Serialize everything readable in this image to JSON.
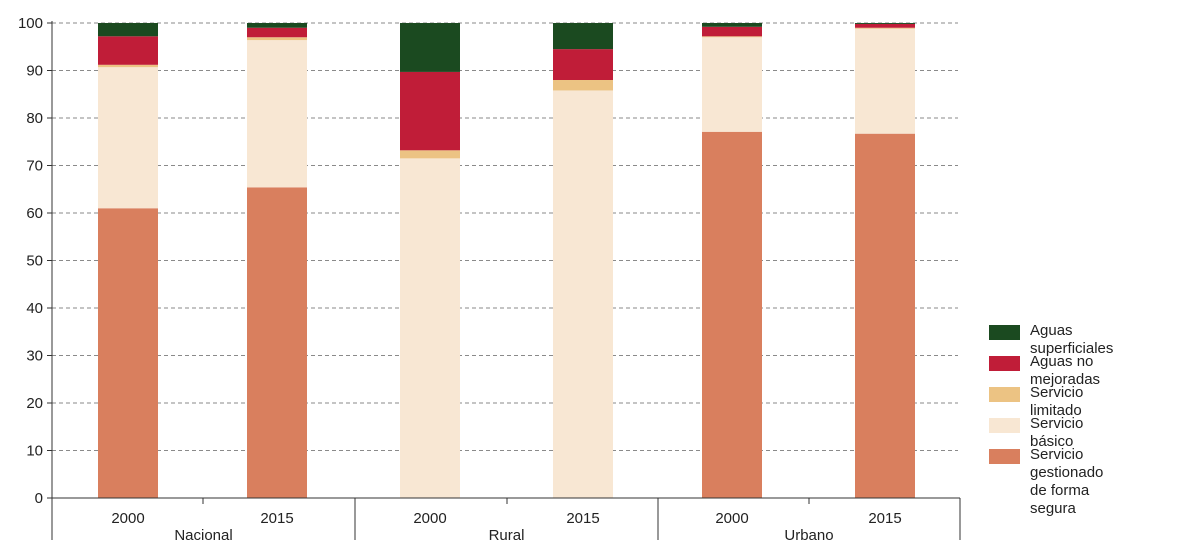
{
  "chart_data": {
    "type": "bar",
    "stacked": true,
    "groups": [
      {
        "label": "Nacional",
        "years": [
          "2000",
          "2015"
        ]
      },
      {
        "label": "Rural",
        "years": [
          "2000",
          "2015"
        ]
      },
      {
        "label": "Urbano",
        "years": [
          "2000",
          "2015"
        ]
      }
    ],
    "categories": [
      "Nacional 2000",
      "Nacional 2015",
      "Rural 2000",
      "Rural 2015",
      "Urbano 2000",
      "Urbano 2015"
    ],
    "series": [
      {
        "name": "Servicio gestionado\nde forma segura",
        "color": "#d97f5e",
        "values": [
          61,
          65.4,
          0,
          0,
          77.1,
          76.7
        ]
      },
      {
        "name": "Servicio básico",
        "color": "#f8e7d3",
        "values": [
          29.7,
          31,
          71.5,
          85.8,
          19.9,
          22.1
        ]
      },
      {
        "name": "Servicio limitado",
        "color": "#ecc383",
        "values": [
          0.5,
          0.6,
          1.7,
          2.2,
          0.2,
          0.2
        ]
      },
      {
        "name": "Aguas no mejoradas",
        "color": "#c01d38",
        "values": [
          6,
          2,
          16.5,
          6.5,
          2,
          0.8
        ]
      },
      {
        "name": "Aguas superficiales",
        "color": "#1b4a20",
        "values": [
          2.8,
          1,
          10.3,
          5.5,
          0.8,
          0.2
        ]
      }
    ],
    "ylim": [
      0,
      100
    ],
    "yticks": [
      0,
      10,
      20,
      30,
      40,
      50,
      60,
      70,
      80,
      90,
      100
    ],
    "grid": true,
    "legend_position": "right",
    "legend_order": [
      "Aguas superficiales",
      "Aguas no mejoradas",
      "Servicio limitado",
      "Servicio básico",
      "Servicio gestionado\nde forma segura"
    ]
  }
}
